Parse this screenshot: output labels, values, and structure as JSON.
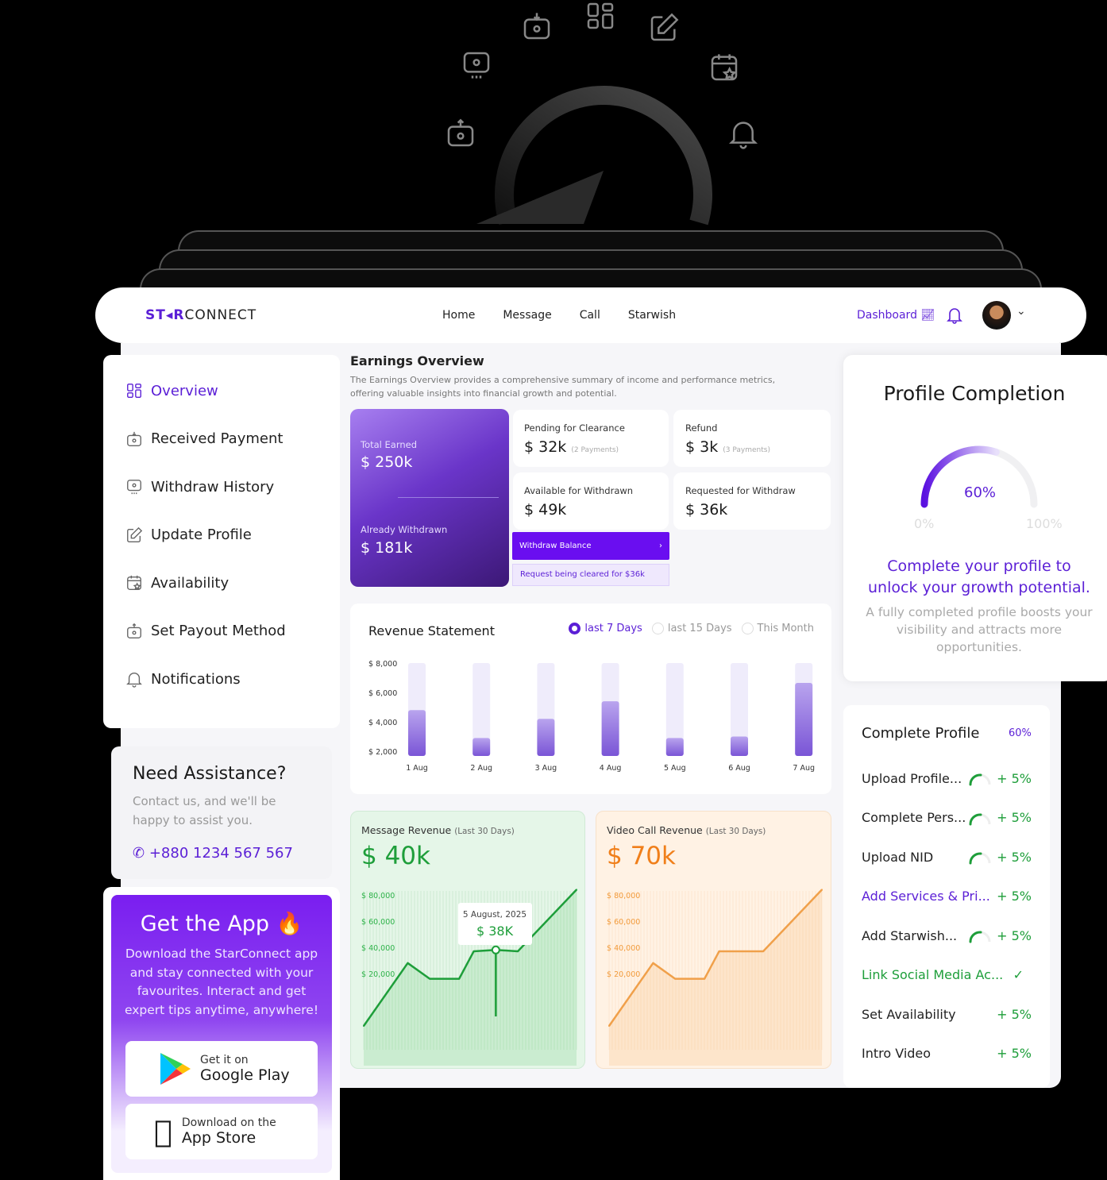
{
  "colors": {
    "accent": "#5b1fd6",
    "green": "#1e9e3a",
    "orange": "#f07f1a"
  },
  "decor_icons": [
    "wallet-in-icon",
    "grid-icon",
    "edit-icon",
    "payout-icon",
    "calendar-star-icon",
    "wallet-out-icon",
    "bell-icon"
  ],
  "header": {
    "logo": {
      "a": "ST",
      "mid": "R",
      "b": "CONNECT"
    },
    "nav": [
      "Home",
      "Message",
      "Call",
      "Starwish"
    ],
    "dashboard": "Dashboard"
  },
  "sidebar": {
    "items": [
      {
        "label": "Overview",
        "icon": "grid-icon",
        "active": true
      },
      {
        "label": "Received Payment",
        "icon": "wallet-in-icon"
      },
      {
        "label": "Withdraw History",
        "icon": "payout-icon"
      },
      {
        "label": "Update Profile",
        "icon": "edit-icon"
      },
      {
        "label": "Availability",
        "icon": "calendar-star-icon"
      },
      {
        "label": "Set Payout Method",
        "icon": "wallet-out-icon"
      },
      {
        "label": "Notifications",
        "icon": "bell-icon"
      }
    ]
  },
  "assist": {
    "title": "Need Assistance?",
    "text": "Contact us, and we'll be happy to assist you.",
    "phone": "+880 1234 567 567"
  },
  "app": {
    "title": "Get the App 🔥",
    "text": "Download the StarConnect app and stay connected with your favourites. Interact and get expert tips anytime, anywhere!",
    "google_small": "Get it on",
    "google_big": "Google Play",
    "apple_small": "Download on the",
    "apple_big": "App Store"
  },
  "earnings": {
    "title": "Earnings Overview",
    "desc": "The Earnings Overview provides a comprehensive summary of income and performance metrics, offering valuable insights into financial growth and potential.",
    "total_label": "Total Earned",
    "total": "$ 250k",
    "withdrawn_label": "Already Withdrawn",
    "withdrawn": "$ 181k",
    "pending_label": "Pending for Clearance",
    "pending": "$ 32k",
    "pending_note": "(2 Payments)",
    "refund_label": "Refund",
    "refund": "$ 3k",
    "refund_note": "(3 Payments)",
    "available_label": "Available for Withdrawn",
    "available": "$ 49k",
    "requested_label": "Requested for Withdraw",
    "requested": "$ 36k",
    "withdraw_btn": "Withdraw Balance",
    "request_note": "Request being cleared for $36k"
  },
  "revenue": {
    "title": "Revenue Statement",
    "options": [
      {
        "label": "last 7 Days",
        "selected": true
      },
      {
        "label": "last 15 Days",
        "selected": false
      },
      {
        "label": "This Month",
        "selected": false
      }
    ]
  },
  "chart_data": [
    {
      "type": "bar",
      "title": "Revenue Statement",
      "categories": [
        "1 Aug",
        "2 Aug",
        "3 Aug",
        "4 Aug",
        "5 Aug",
        "6 Aug",
        "7 Aug"
      ],
      "values": [
        4800,
        2900,
        4200,
        5400,
        2900,
        3000,
        6650
      ],
      "yticks": [
        "$ 8,000",
        "$ 6,000",
        "$ 4,000",
        "$ 2,000"
      ],
      "ylim": [
        2000,
        8000
      ]
    },
    {
      "type": "area",
      "title": "Message Revenue",
      "subtitle": "(Last 30 Days)",
      "total": "$ 40k",
      "x": [
        1,
        7,
        10,
        14,
        16,
        19,
        22,
        30
      ],
      "values": [
        -20000,
        28000,
        16000,
        16000,
        37000,
        38000,
        37000,
        84000
      ],
      "yticks": [
        "$ 80,000",
        "$ 60,000",
        "$ 40,000",
        "$ 20,000"
      ],
      "tooltip": {
        "date": "5 August, 2025",
        "value": "$ 38K"
      }
    },
    {
      "type": "area",
      "title": "Video Call Revenue",
      "subtitle": "(Last 30 Days)",
      "total": "$ 70k",
      "x": [
        1,
        7,
        10,
        14,
        16,
        19,
        22,
        30
      ],
      "values": [
        -20000,
        28000,
        16000,
        16000,
        37000,
        37000,
        37000,
        84000
      ],
      "yticks": [
        "$ 80,000",
        "$ 60,000",
        "$ 40,000",
        "$ 20,000"
      ]
    }
  ],
  "profile": {
    "title": "Profile Completion",
    "percent": 60,
    "percent_label": "60%",
    "min": "0%",
    "max": "100%",
    "headline": "Complete your profile to unlock your growth potential.",
    "text": "A fully completed profile boosts your visibility and attracts more opportunities."
  },
  "complete": {
    "title": "Complete Profile",
    "percent": "60%",
    "items": [
      {
        "label": "Upload Profile...",
        "value": "+ 5%",
        "status": "progress"
      },
      {
        "label": "Complete Pers...",
        "value": "+ 5%",
        "status": "progress"
      },
      {
        "label": "Upload NID",
        "value": "+ 5%",
        "status": "progress"
      },
      {
        "label": "Add Services & Pri...",
        "value": "+ 5%",
        "status": "active"
      },
      {
        "label": "Add Starwish...",
        "value": "+ 5%",
        "status": "progress"
      },
      {
        "label": "Link Social Media Ac...",
        "value": "✓",
        "status": "done"
      },
      {
        "label": "Set Availability",
        "value": "+ 5%",
        "status": "todo"
      },
      {
        "label": "Intro Video",
        "value": "+ 5%",
        "status": "todo"
      }
    ]
  }
}
